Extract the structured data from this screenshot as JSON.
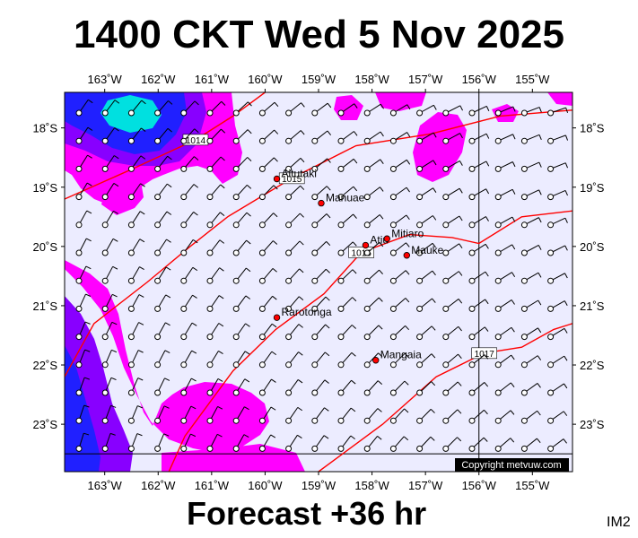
{
  "header": {
    "title": "1400 CKT Wed 5 Nov 2025"
  },
  "footer": {
    "forecast": "Forecast +36 hr",
    "code": "IM2"
  },
  "map": {
    "lon_range": [
      163.75,
      154.25
    ],
    "lat_range": [
      17.4,
      23.8
    ],
    "lon_ticks": [
      {
        "value": 163,
        "label": "163˚W"
      },
      {
        "value": 162,
        "label": "162˚W"
      },
      {
        "value": 161,
        "label": "161˚W"
      },
      {
        "value": 160,
        "label": "160˚W"
      },
      {
        "value": 159,
        "label": "159˚W"
      },
      {
        "value": 158,
        "label": "158˚W"
      },
      {
        "value": 157,
        "label": "157˚W"
      },
      {
        "value": 156,
        "label": "156˚W"
      },
      {
        "value": 155,
        "label": "155˚W"
      }
    ],
    "lat_ticks": [
      {
        "value": 18,
        "label": "18˚S"
      },
      {
        "value": 19,
        "label": "19˚S"
      },
      {
        "value": 20,
        "label": "20˚S"
      },
      {
        "value": 21,
        "label": "21˚S"
      },
      {
        "value": 22,
        "label": "22˚S"
      },
      {
        "value": 23,
        "label": "23˚S"
      }
    ],
    "islands": [
      {
        "name": "Aitutaki",
        "lon": 159.78,
        "lat": 18.86
      },
      {
        "name": "Manuae",
        "lon": 158.95,
        "lat": 19.27
      },
      {
        "name": "Atiu",
        "lon": 158.12,
        "lat": 19.98
      },
      {
        "name": "Mitiaro",
        "lon": 157.72,
        "lat": 19.87
      },
      {
        "name": "Mauke",
        "lon": 157.35,
        "lat": 20.15
      },
      {
        "name": "Rarotonga",
        "lon": 159.78,
        "lat": 21.2
      },
      {
        "name": "Mangaia",
        "lon": 157.93,
        "lat": 21.92
      }
    ],
    "isobars": [
      {
        "label": "1014",
        "points": [
          [
            163.75,
            19.2
          ],
          [
            162.5,
            18.7
          ],
          [
            161.3,
            18.2
          ],
          [
            160.6,
            17.8
          ],
          [
            160.0,
            17.4
          ]
        ]
      },
      {
        "label": "1015",
        "points": [
          [
            163.75,
            22.2
          ],
          [
            163.2,
            21.3
          ],
          [
            162.2,
            20.6
          ],
          [
            161.4,
            20.0
          ],
          [
            160.7,
            19.5
          ],
          [
            159.5,
            18.85
          ],
          [
            158.3,
            18.3
          ],
          [
            156.9,
            18.1
          ],
          [
            155.6,
            17.8
          ],
          [
            154.25,
            17.7
          ]
        ]
      },
      {
        "label": "1016",
        "points": [
          [
            161.8,
            23.8
          ],
          [
            161.5,
            23.2
          ],
          [
            160.6,
            22.1
          ],
          [
            159.8,
            21.4
          ],
          [
            158.9,
            20.8
          ],
          [
            158.2,
            20.1
          ],
          [
            157.3,
            19.8
          ],
          [
            156.5,
            19.85
          ],
          [
            156.0,
            19.95
          ],
          [
            155.2,
            19.5
          ],
          [
            154.25,
            19.4
          ]
        ]
      },
      {
        "label": "1017",
        "points": [
          [
            159.0,
            23.8
          ],
          [
            157.8,
            23.0
          ],
          [
            156.8,
            22.2
          ],
          [
            155.9,
            21.8
          ],
          [
            155.2,
            21.7
          ],
          [
            154.6,
            21.4
          ],
          [
            154.25,
            21.3
          ]
        ]
      }
    ],
    "copyright": "Copyright metvuw.com",
    "colors": {
      "background": "#ececff",
      "magenta": "#ff00ff",
      "purple": "#8800ff",
      "blue": "#2020ff",
      "cyan": "#00e0e0",
      "isobar": "#ff0000",
      "island": "#ff0000"
    }
  }
}
